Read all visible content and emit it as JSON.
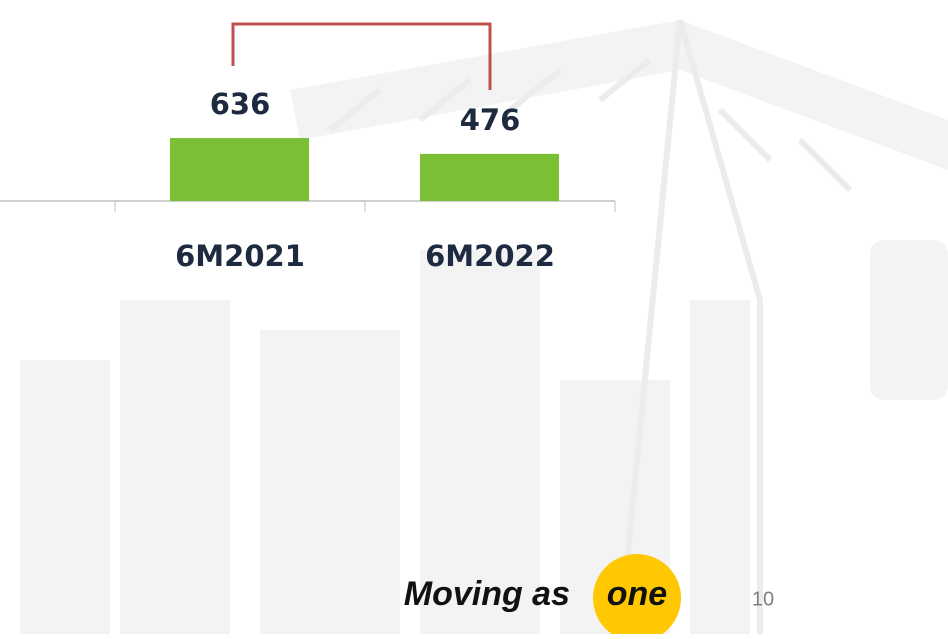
{
  "chart_data": {
    "type": "bar",
    "categories": [
      "6M2021",
      "6M2022"
    ],
    "values": [
      636,
      476
    ],
    "color": "#7bbf35"
  },
  "footer": {
    "slogan": "Moving as",
    "slogan_highlight": "one",
    "page_number": 10
  }
}
